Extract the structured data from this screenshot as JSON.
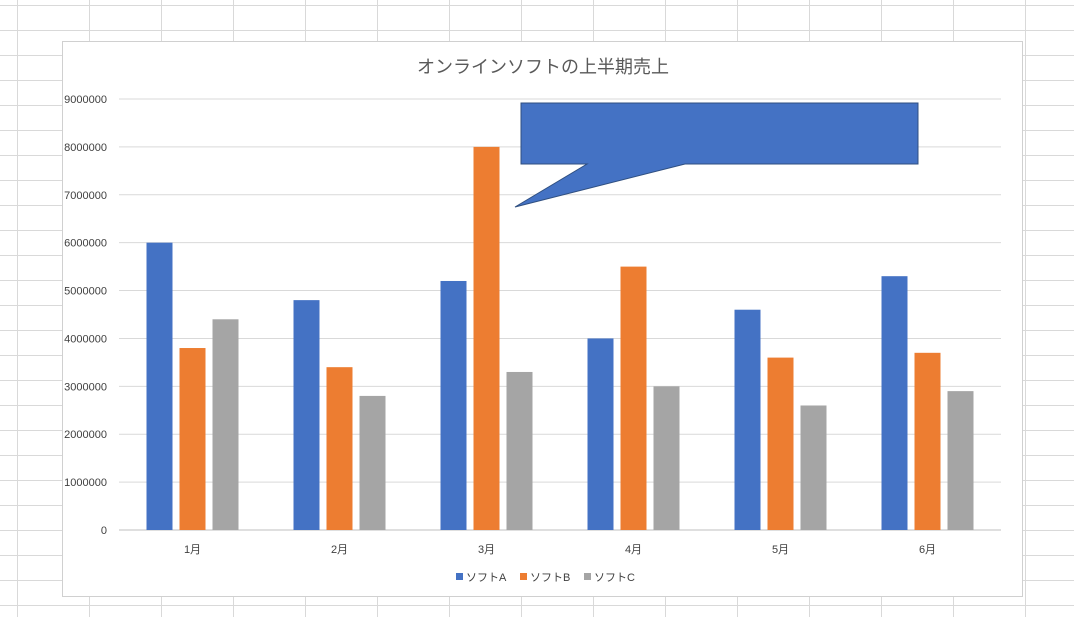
{
  "chart_data": {
    "type": "bar",
    "title": "オンラインソフトの上半期売上",
    "xlabel": "",
    "ylabel": "",
    "categories": [
      "1月",
      "2月",
      "3月",
      "4月",
      "5月",
      "6月"
    ],
    "series": [
      {
        "name": "ソフトA",
        "color": "#4472C4",
        "values": [
          6000000,
          4800000,
          5200000,
          4000000,
          4600000,
          5300000
        ]
      },
      {
        "name": "ソフトB",
        "color": "#ED7D31",
        "values": [
          3800000,
          3400000,
          8000000,
          5500000,
          3600000,
          3700000
        ]
      },
      {
        "name": "ソフトC",
        "color": "#A5A5A5",
        "values": [
          4400000,
          2800000,
          3300000,
          3000000,
          2600000,
          2900000
        ]
      }
    ],
    "ylim": [
      0,
      9000000
    ],
    "yticks": [
      "0",
      "1000000",
      "2000000",
      "3000000",
      "4000000",
      "5000000",
      "6000000",
      "7000000",
      "8000000",
      "9000000"
    ],
    "grid": true,
    "legend_position": "bottom",
    "callout": {
      "shape": "rectangular-speech-bubble",
      "color": "#4472C4",
      "text": ""
    }
  }
}
